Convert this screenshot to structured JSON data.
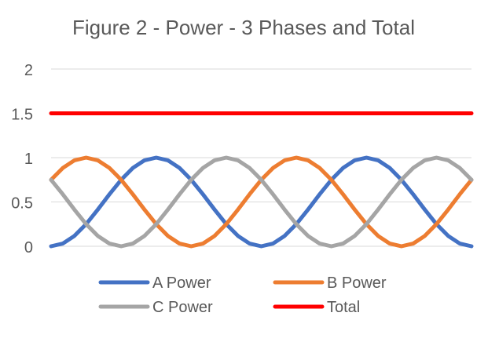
{
  "chart_data": {
    "type": "line",
    "title": "Figure 2 - Power - 3 Phases and Total",
    "xlabel": "",
    "ylabel": "",
    "ylim": [
      0,
      2
    ],
    "yticks": [
      "0",
      "0.5",
      "1",
      "1.5",
      "2"
    ],
    "grid": true,
    "legend": "bottom",
    "series": [
      {
        "name": "A Power",
        "color": "#4472C4",
        "values": [
          0,
          0.0302,
          0.117,
          0.25,
          0.4132,
          0.5868,
          0.75,
          0.883,
          0.9698,
          1,
          0.9698,
          0.883,
          0.75,
          0.5868,
          0.4132,
          0.25,
          0.117,
          0.0302,
          0,
          0.0302,
          0.117,
          0.25,
          0.4132,
          0.5868,
          0.75,
          0.883,
          0.9698,
          1,
          0.9698,
          0.883,
          0.75,
          0.5868,
          0.4132,
          0.25,
          0.117,
          0.0302,
          0
        ]
      },
      {
        "name": "B Power",
        "color": "#ED7D31",
        "values": [
          0.75,
          0.883,
          0.9698,
          1,
          0.9698,
          0.883,
          0.75,
          0.5868,
          0.4132,
          0.25,
          0.117,
          0.0302,
          0,
          0.0302,
          0.117,
          0.25,
          0.4132,
          0.5868,
          0.75,
          0.883,
          0.9698,
          1,
          0.9698,
          0.883,
          0.75,
          0.5868,
          0.4132,
          0.25,
          0.117,
          0.0302,
          0,
          0.0302,
          0.117,
          0.25,
          0.4132,
          0.5868,
          0.75
        ]
      },
      {
        "name": "C Power",
        "color": "#A5A5A5",
        "values": [
          0.75,
          0.5868,
          0.4132,
          0.25,
          0.117,
          0.0302,
          0,
          0.0302,
          0.117,
          0.25,
          0.4132,
          0.5868,
          0.75,
          0.883,
          0.9698,
          1,
          0.9698,
          0.883,
          0.75,
          0.5868,
          0.4132,
          0.25,
          0.117,
          0.0302,
          0,
          0.0302,
          0.117,
          0.25,
          0.4132,
          0.5868,
          0.75,
          0.883,
          0.9698,
          1,
          0.9698,
          0.883,
          0.75
        ]
      },
      {
        "name": "Total",
        "color": "#FF0000",
        "values": [
          1.5,
          1.5,
          1.5,
          1.5,
          1.5,
          1.5,
          1.5,
          1.5,
          1.5,
          1.5,
          1.5,
          1.5,
          1.5,
          1.5,
          1.5,
          1.5,
          1.5,
          1.5,
          1.5,
          1.5,
          1.5,
          1.5,
          1.5,
          1.5,
          1.5,
          1.5,
          1.5,
          1.5,
          1.5,
          1.5,
          1.5,
          1.5,
          1.5,
          1.5,
          1.5,
          1.5,
          1.5
        ]
      }
    ]
  }
}
